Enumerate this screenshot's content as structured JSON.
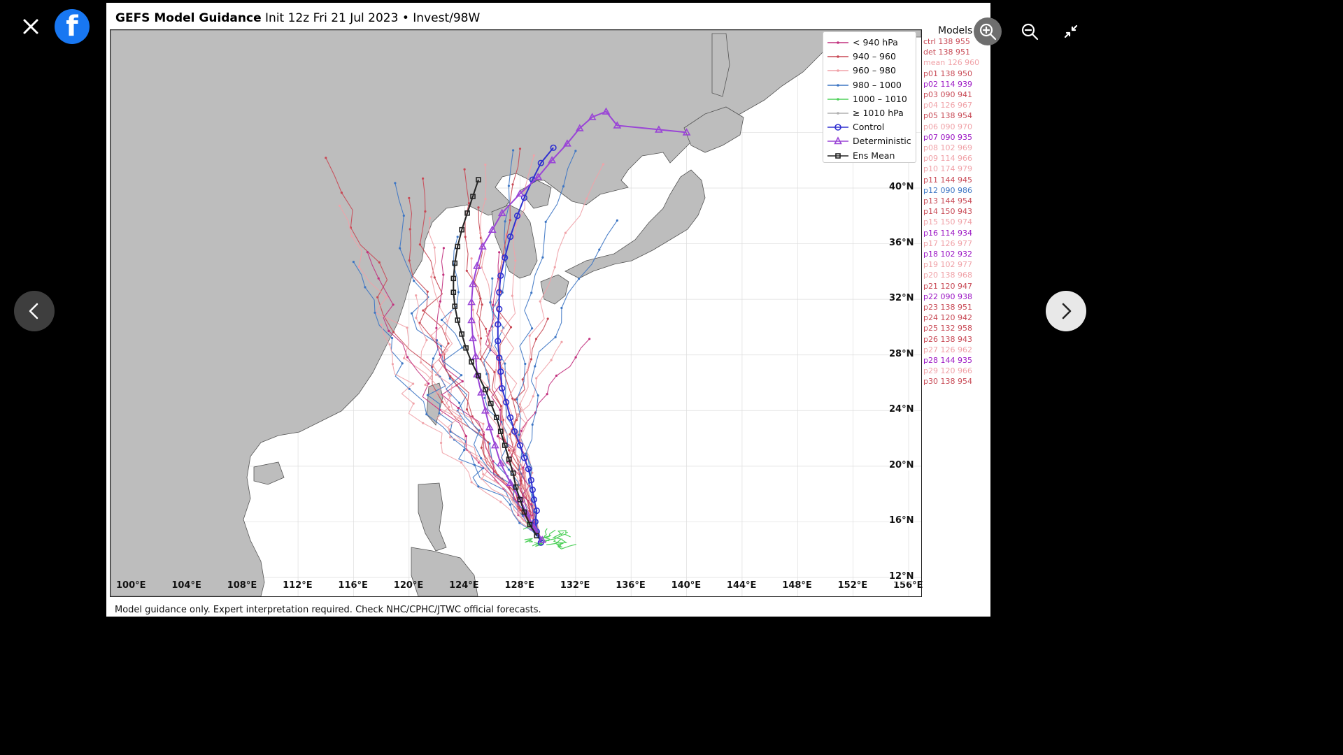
{
  "viewer": {
    "close_icon": "close-icon",
    "logo_icon": "facebook-logo",
    "logo_letter": "f",
    "prev_icon": "chevron-left-icon",
    "next_icon": "chevron-right-icon",
    "controls": [
      "zoom-in-icon",
      "zoom-out-icon",
      "exit-fullscreen-icon"
    ]
  },
  "figure": {
    "title_bold": "GEFS Model Guidance",
    "title_rest": " Init 12z Fri 21 Jul 2023 • Invest/98W",
    "footer": "Model guidance only. Expert interpretation required. Check NHC/CPHC/JTWC official forecasts.",
    "models_title": "Models"
  },
  "chart_data": {
    "type": "line",
    "title": "GEFS Model Guidance Init 12z Fri 21 Jul 2023 • Invest/98W",
    "x_ticks": [
      "100°E",
      "104°E",
      "108°E",
      "112°E",
      "116°E",
      "120°E",
      "124°E",
      "128°E",
      "132°E",
      "136°E",
      "140°E",
      "144°E",
      "148°E",
      "152°E",
      "156°E"
    ],
    "y_ticks": [
      "40°N",
      "36°N",
      "32°N",
      "28°N",
      "24°N",
      "20°N",
      "16°N",
      "12°N"
    ],
    "xlim": [
      100,
      156
    ],
    "ylim": [
      11.5,
      44
    ],
    "grid": true,
    "legend_position": "top-right",
    "legend": [
      {
        "label": "< 940 hPa",
        "color": "#c2317e",
        "marker": "dot"
      },
      {
        "label": "940 – 960",
        "color": "#c84955",
        "marker": "dot"
      },
      {
        "label": "960 – 980",
        "color": "#f0a2a8",
        "marker": "dot"
      },
      {
        "label": "980 – 1000",
        "color": "#3d76c4",
        "marker": "dot"
      },
      {
        "label": "1000 – 1010",
        "color": "#4ed05a",
        "marker": "dot"
      },
      {
        "label": "≥ 1010 hPa",
        "color": "#b0b0b0",
        "marker": "dot"
      },
      {
        "label": "Control",
        "color": "#3030d0",
        "marker": "circle"
      },
      {
        "label": "Deterministic",
        "color": "#9a45d6",
        "marker": "triangle"
      },
      {
        "label": "Ens Mean",
        "color": "#222222",
        "marker": "square"
      }
    ],
    "series": [
      {
        "name": "Control",
        "color": "#3030d0",
        "marker": "circle",
        "x": [
          129.5,
          129.2,
          129.1,
          129.2,
          129.0,
          128.9,
          128.8,
          128.6,
          128.3,
          128.0,
          127.6,
          127.3,
          127.0,
          126.7,
          126.6,
          126.5,
          126.4,
          126.4,
          126.5,
          126.5,
          126.6,
          126.9,
          127.3,
          127.8,
          128.3,
          128.9,
          129.5,
          130.4
        ],
        "y": [
          14.5,
          15.3,
          16.0,
          16.8,
          17.6,
          18.3,
          19.0,
          19.8,
          20.6,
          21.5,
          22.5,
          23.5,
          24.6,
          25.6,
          26.8,
          27.8,
          29.0,
          30.2,
          31.3,
          32.5,
          33.7,
          35.0,
          36.5,
          38.0,
          39.3,
          40.6,
          41.8,
          42.9
        ]
      },
      {
        "name": "Deterministic",
        "color": "#9a45d6",
        "marker": "triangle",
        "x": [
          129.6,
          129.0,
          128.5,
          128.0,
          127.3,
          126.6,
          126.2,
          125.8,
          125.5,
          125.2,
          124.9,
          124.8,
          124.6,
          124.5,
          124.5,
          124.6,
          124.9,
          125.3,
          126.0,
          126.7,
          128.0,
          129.3,
          130.3,
          131.4,
          132.3,
          133.2,
          134.2,
          135.0,
          138.0,
          140.0
        ],
        "y": [
          14.7,
          15.6,
          16.6,
          17.6,
          18.8,
          20.2,
          21.5,
          22.8,
          24.0,
          25.3,
          26.6,
          27.9,
          29.2,
          30.5,
          31.8,
          33.1,
          34.4,
          35.8,
          37.0,
          38.2,
          39.6,
          40.8,
          42.0,
          43.2,
          44.3,
          45.1,
          45.5,
          44.5,
          44.2,
          44.0
        ]
      },
      {
        "name": "Ens Mean",
        "color": "#222222",
        "marker": "square",
        "x": [
          129.2,
          128.7,
          128.3,
          128.0,
          127.7,
          127.5,
          127.2,
          126.9,
          126.6,
          126.3,
          125.9,
          125.5,
          125.0,
          124.5,
          124.1,
          123.8,
          123.5,
          123.3,
          123.2,
          123.2,
          123.3,
          123.5,
          123.8,
          124.2,
          124.6,
          125.0
        ],
        "y": [
          15.0,
          15.8,
          16.7,
          17.6,
          18.5,
          19.5,
          20.5,
          21.5,
          22.5,
          23.5,
          24.5,
          25.5,
          26.5,
          27.5,
          28.5,
          29.5,
          30.5,
          31.5,
          32.5,
          33.5,
          34.6,
          35.8,
          37.0,
          38.2,
          39.4,
          40.6
        ]
      }
    ]
  },
  "models": [
    {
      "id": "ctrl",
      "lat": "138",
      "pres": "955",
      "color": "#c84955"
    },
    {
      "id": "det",
      "lat": "138",
      "pres": "951",
      "color": "#c84955"
    },
    {
      "id": "mean",
      "lat": "126",
      "pres": "960",
      "color": "#f0a2a8"
    },
    {
      "id": "p01",
      "lat": "138",
      "pres": "950",
      "color": "#c84955"
    },
    {
      "id": "p02",
      "lat": "114",
      "pres": "939",
      "color": "#9b14c4"
    },
    {
      "id": "p03",
      "lat": "090",
      "pres": "941",
      "color": "#c84955"
    },
    {
      "id": "p04",
      "lat": "126",
      "pres": "967",
      "color": "#f0a2a8"
    },
    {
      "id": "p05",
      "lat": "138",
      "pres": "954",
      "color": "#c84955"
    },
    {
      "id": "p06",
      "lat": "090",
      "pres": "970",
      "color": "#f0a2a8"
    },
    {
      "id": "p07",
      "lat": "090",
      "pres": "935",
      "color": "#9b14c4"
    },
    {
      "id": "p08",
      "lat": "102",
      "pres": "969",
      "color": "#f0a2a8"
    },
    {
      "id": "p09",
      "lat": "114",
      "pres": "966",
      "color": "#f0a2a8"
    },
    {
      "id": "p10",
      "lat": "174",
      "pres": "979",
      "color": "#f0a2a8"
    },
    {
      "id": "p11",
      "lat": "144",
      "pres": "945",
      "color": "#c84955"
    },
    {
      "id": "p12",
      "lat": "090",
      "pres": "986",
      "color": "#3d76c4"
    },
    {
      "id": "p13",
      "lat": "144",
      "pres": "954",
      "color": "#c84955"
    },
    {
      "id": "p14",
      "lat": "150",
      "pres": "943",
      "color": "#c84955"
    },
    {
      "id": "p15",
      "lat": "150",
      "pres": "974",
      "color": "#f0a2a8"
    },
    {
      "id": "p16",
      "lat": "114",
      "pres": "934",
      "color": "#9b14c4"
    },
    {
      "id": "p17",
      "lat": "126",
      "pres": "977",
      "color": "#f0a2a8"
    },
    {
      "id": "p18",
      "lat": "102",
      "pres": "932",
      "color": "#9b14c4"
    },
    {
      "id": "p19",
      "lat": "102",
      "pres": "977",
      "color": "#f0a2a8"
    },
    {
      "id": "p20",
      "lat": "138",
      "pres": "968",
      "color": "#f0a2a8"
    },
    {
      "id": "p21",
      "lat": "120",
      "pres": "947",
      "color": "#c84955"
    },
    {
      "id": "p22",
      "lat": "090",
      "pres": "938",
      "color": "#9b14c4"
    },
    {
      "id": "p23",
      "lat": "138",
      "pres": "951",
      "color": "#c84955"
    },
    {
      "id": "p24",
      "lat": "120",
      "pres": "942",
      "color": "#c84955"
    },
    {
      "id": "p25",
      "lat": "132",
      "pres": "958",
      "color": "#c84955"
    },
    {
      "id": "p26",
      "lat": "138",
      "pres": "943",
      "color": "#c84955"
    },
    {
      "id": "p27",
      "lat": "126",
      "pres": "962",
      "color": "#f0a2a8"
    },
    {
      "id": "p28",
      "lat": "144",
      "pres": "935",
      "color": "#9b14c4"
    },
    {
      "id": "p29",
      "lat": "120",
      "pres": "966",
      "color": "#f0a2a8"
    },
    {
      "id": "p30",
      "lat": "138",
      "pres": "954",
      "color": "#c84955"
    }
  ]
}
